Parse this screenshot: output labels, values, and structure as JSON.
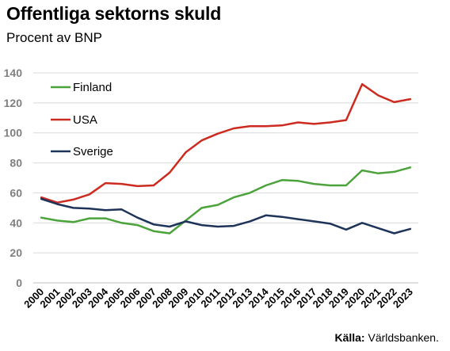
{
  "chart_data": {
    "type": "line",
    "title": "Offentliga sektorns skuld",
    "subtitle": "Procent av BNP",
    "source_label": "Källa:",
    "source_text": " Världsbanken.",
    "x": [
      "2000",
      "2001",
      "2002",
      "2003",
      "2004",
      "2005",
      "2006",
      "2007",
      "2008",
      "2009",
      "2010",
      "2011",
      "2012",
      "2013",
      "2014",
      "2015",
      "2016",
      "2017",
      "2018",
      "2019",
      "2020",
      "2021",
      "2022",
      "2023"
    ],
    "ylim": [
      0,
      140
    ],
    "yticks": [
      0,
      20,
      40,
      60,
      80,
      100,
      120,
      140
    ],
    "grid": true,
    "legend_position": "top-left",
    "series": [
      {
        "name": "Finland",
        "color": "#4ca23b",
        "values": [
          43.5,
          41.5,
          40.5,
          43,
          43,
          40,
          38.5,
          34.5,
          33,
          41.5,
          50,
          52,
          57,
          60,
          65,
          68.5,
          68,
          66,
          65,
          65,
          75,
          73,
          74,
          77
        ]
      },
      {
        "name": "USA",
        "color": "#cc2b20",
        "values": [
          57,
          53.5,
          55.5,
          59,
          66.5,
          66,
          64.5,
          65,
          73.5,
          87,
          95,
          99.5,
          103,
          104.5,
          104.5,
          105,
          107,
          106,
          107,
          108.5,
          132.5,
          125,
          120.5,
          122.5
        ]
      },
      {
        "name": "Sverige",
        "color": "#1e3359",
        "values": [
          56,
          52.5,
          50,
          49.5,
          48.5,
          49,
          43.5,
          39,
          37.5,
          41,
          38.5,
          37.5,
          38,
          41,
          45,
          44,
          42.5,
          41,
          39.5,
          35.5,
          40,
          36.5,
          33,
          36
        ]
      }
    ]
  }
}
